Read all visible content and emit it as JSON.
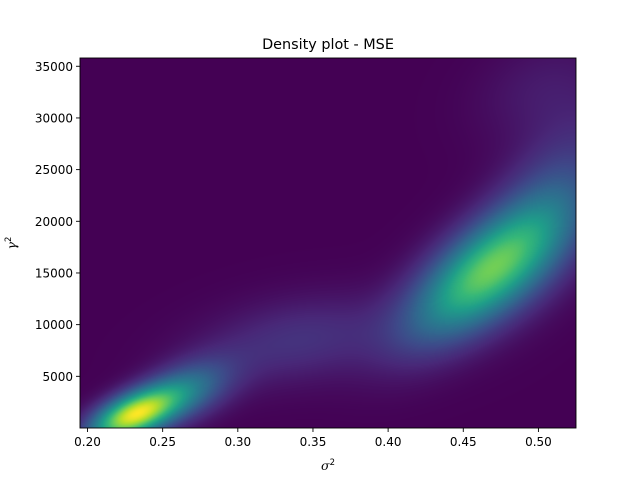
{
  "chart_data": {
    "type": "heatmap",
    "title": "Density plot - MSE",
    "xlabel": {
      "base": "σ",
      "sup": "2"
    },
    "ylabel": {
      "base": "γ",
      "sup": "2"
    },
    "xlim": [
      0.195,
      0.525
    ],
    "ylim": [
      0,
      35800
    ],
    "xticks": [
      {
        "value": 0.2,
        "label": "0.20"
      },
      {
        "value": 0.25,
        "label": "0.25"
      },
      {
        "value": 0.3,
        "label": "0.30"
      },
      {
        "value": 0.35,
        "label": "0.35"
      },
      {
        "value": 0.4,
        "label": "0.40"
      },
      {
        "value": 0.45,
        "label": "0.45"
      },
      {
        "value": 0.5,
        "label": "0.50"
      }
    ],
    "yticks": [
      {
        "value": 5000,
        "label": "5000"
      },
      {
        "value": 10000,
        "label": "10000"
      },
      {
        "value": 15000,
        "label": "15000"
      },
      {
        "value": 20000,
        "label": "20000"
      },
      {
        "value": 25000,
        "label": "25000"
      },
      {
        "value": 30000,
        "label": "30000"
      },
      {
        "value": 35000,
        "label": "35000"
      }
    ],
    "colormap": "viridis",
    "colormap_stops": [
      "#440154",
      "#482878",
      "#3e4989",
      "#31688e",
      "#26828e",
      "#1f9e89",
      "#35b779",
      "#6ece58",
      "#b5de2b",
      "#fde725"
    ],
    "density_components": [
      {
        "x": 0.23,
        "y": 1200,
        "sx": 0.02,
        "sy": 1800,
        "corr": 0.55,
        "weight": 1.0
      },
      {
        "x": 0.265,
        "y": 3500,
        "sx": 0.022,
        "sy": 2200,
        "corr": 0.45,
        "weight": 0.38
      },
      {
        "x": 0.34,
        "y": 8500,
        "sx": 0.045,
        "sy": 3000,
        "corr": 0.3,
        "weight": 0.16
      },
      {
        "x": 0.465,
        "y": 15000,
        "sx": 0.035,
        "sy": 4500,
        "corr": 0.65,
        "weight": 0.8
      },
      {
        "x": 0.51,
        "y": 22000,
        "sx": 0.03,
        "sy": 6000,
        "corr": 0.5,
        "weight": 0.22
      },
      {
        "x": 0.5,
        "y": 33000,
        "sx": 0.03,
        "sy": 3500,
        "corr": 0.3,
        "weight": 0.07
      }
    ]
  }
}
